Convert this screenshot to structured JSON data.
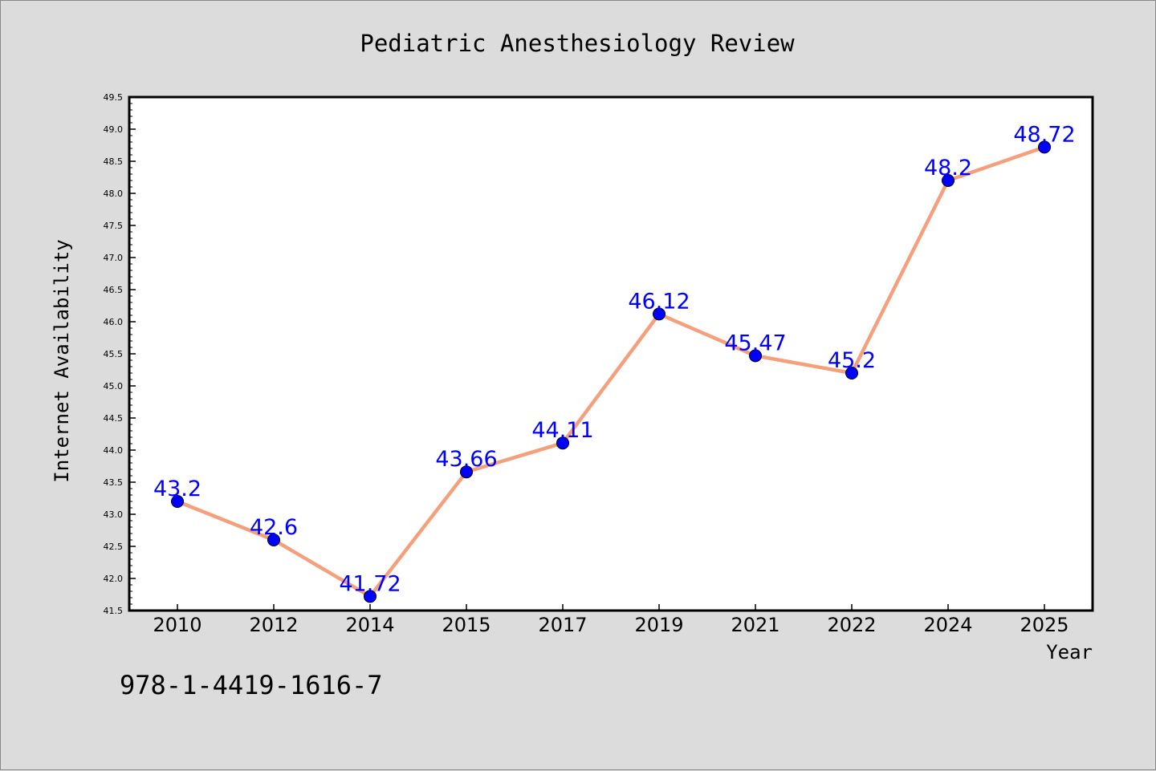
{
  "chart_data": {
    "type": "line",
    "title": "Pediatric Anesthesiology Review",
    "xlabel": "Year",
    "ylabel": "Internet Availability",
    "categories": [
      "2010",
      "2012",
      "2014",
      "2015",
      "2017",
      "2019",
      "2021",
      "2022",
      "2024",
      "2025"
    ],
    "series": [
      {
        "values": [
          43.2,
          42.6,
          41.72,
          43.66,
          44.11,
          46.12,
          45.47,
          45.2,
          48.2,
          48.72
        ],
        "value_labels": [
          "43.2",
          "42.6",
          "41.72",
          "43.66",
          "44.11",
          "46.12",
          "45.47",
          "45.2",
          "48.2",
          "48.72"
        ],
        "line_color": "#f4a07c",
        "marker_color": "#0000ff",
        "label_color": "#0000ff"
      }
    ],
    "ylim": [
      41.5,
      49.5
    ],
    "ytick_labels": [
      "41.5",
      "42.0",
      "42.5",
      "43.0",
      "43.5",
      "44.0",
      "44.5",
      "45.0",
      "45.5",
      "46.0",
      "46.5",
      "47.0",
      "47.5",
      "48.0",
      "48.5",
      "49.0",
      "49.5"
    ],
    "grid": false,
    "legend": "none"
  },
  "footer": {
    "isbn": "978-1-4419-1616-7"
  }
}
